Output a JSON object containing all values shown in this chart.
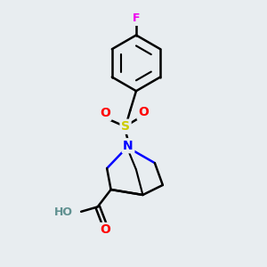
{
  "background_color": "#e8edf0",
  "atom_colors": {
    "F": "#ee00ee",
    "O": "#ff0000",
    "N": "#0000ff",
    "S": "#cccc00",
    "C": "#000000",
    "H": "#5f9090"
  },
  "bond_color": "#000000",
  "bond_width": 1.8,
  "figsize": [
    3.0,
    3.0
  ],
  "dpi": 100
}
